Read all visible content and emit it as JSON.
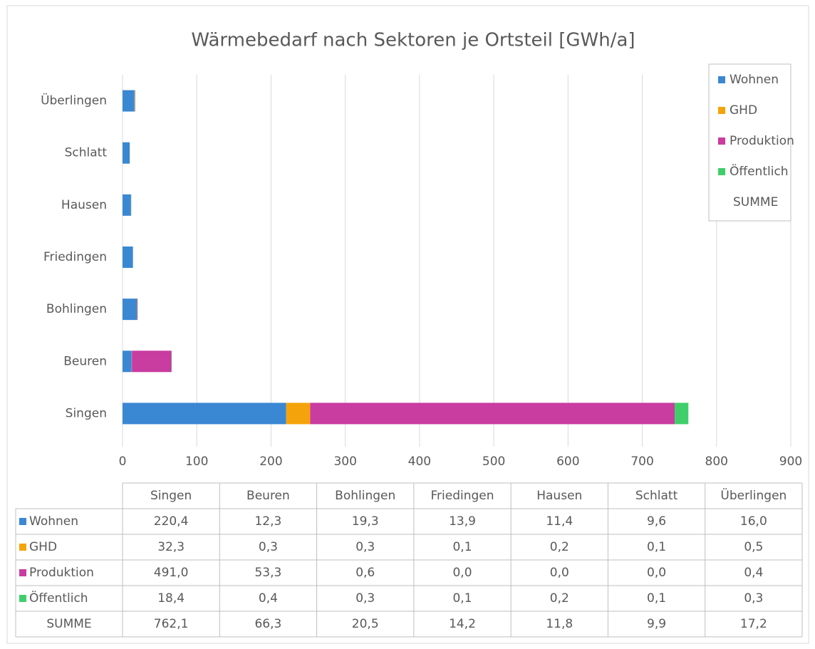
{
  "chart_data": {
    "type": "stacked_barh",
    "title": "Wärmebedarf nach Sektoren je Ortsteil [GWh/a]",
    "categories": [
      "Singen",
      "Beuren",
      "Bohlingen",
      "Friedingen",
      "Hausen",
      "Schlatt",
      "Überlingen"
    ],
    "series": [
      {
        "name": "Wohnen",
        "color": "#3a87d4",
        "values": [
          220.4,
          12.3,
          19.3,
          13.9,
          11.4,
          9.6,
          16.0
        ],
        "value_labels": [
          "220,4",
          "12,3",
          "19,3",
          "13,9",
          "11,4",
          "9,6",
          "16,0"
        ]
      },
      {
        "name": "GHD",
        "color": "#f5a30a",
        "values": [
          32.3,
          0.3,
          0.3,
          0.1,
          0.2,
          0.1,
          0.5
        ],
        "value_labels": [
          "32,3",
          "0,3",
          "0,3",
          "0,1",
          "0,2",
          "0,1",
          "0,5"
        ]
      },
      {
        "name": "Produktion",
        "color": "#c93ca0",
        "values": [
          491.0,
          53.3,
          0.6,
          0.0,
          0.0,
          0.0,
          0.4
        ],
        "value_labels": [
          "491,0",
          "53,3",
          "0,6",
          "0,0",
          "0,0",
          "0,0",
          "0,4"
        ]
      },
      {
        "name": "Öffentlich",
        "color": "#3fcf6a",
        "values": [
          18.4,
          0.4,
          0.3,
          0.1,
          0.2,
          0.1,
          0.3
        ],
        "value_labels": [
          "18,4",
          "0,4",
          "0,3",
          "0,1",
          "0,2",
          "0,1",
          "0,3"
        ]
      }
    ],
    "totals": {
      "name": "SUMME",
      "values": [
        762.1,
        66.3,
        20.5,
        14.2,
        11.8,
        9.9,
        17.2
      ],
      "value_labels": [
        "762,1",
        "66,3",
        "20,5",
        "14,2",
        "11,8",
        "9,9",
        "17,2"
      ]
    },
    "xlim": [
      0,
      900
    ],
    "xticks": [
      0,
      100,
      200,
      300,
      400,
      500,
      600,
      700,
      800,
      900
    ],
    "grid": true,
    "legend": "right"
  }
}
